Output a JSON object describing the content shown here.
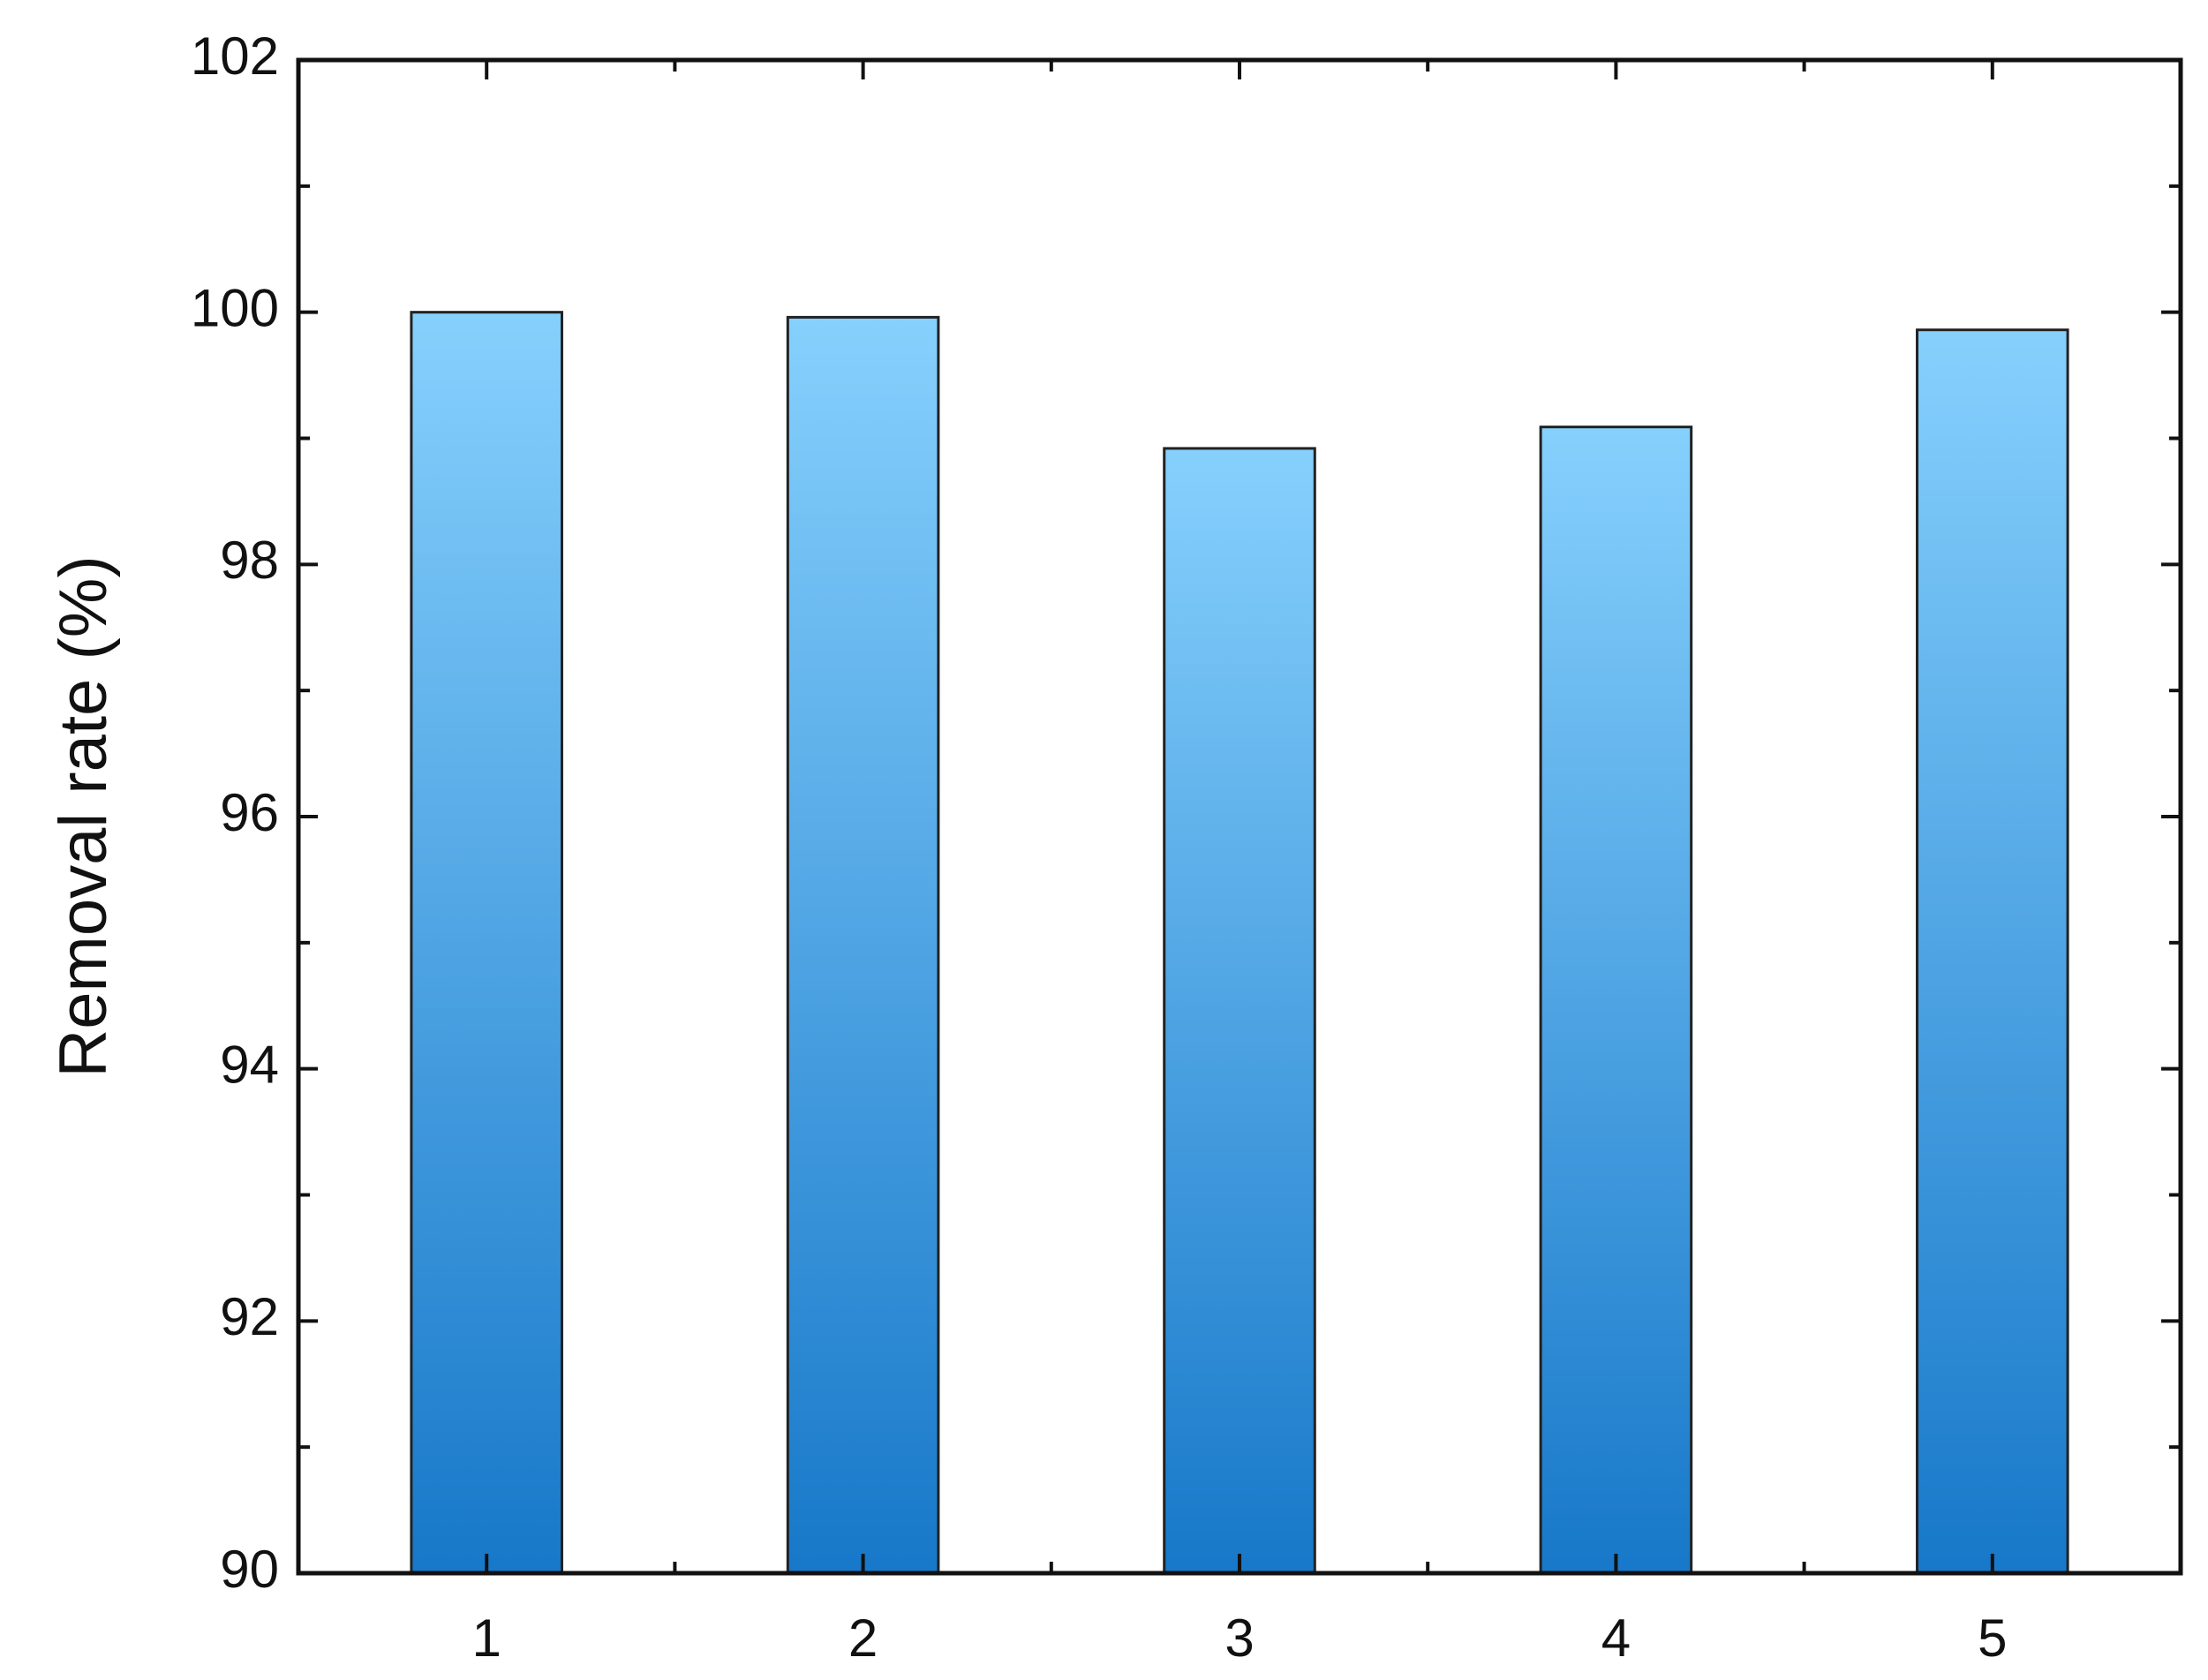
{
  "chart_data": {
    "type": "bar",
    "y_label": "Removal rate  (%)",
    "categories": [
      "1",
      "2",
      "3",
      "4",
      "5"
    ],
    "values": [
      100.0,
      99.96,
      98.92,
      99.09,
      99.86
    ],
    "color_top": "#86d0fd",
    "color_bottom": "#1778c9",
    "ylim": [
      90,
      102
    ],
    "yticks": [
      90,
      92,
      94,
      96,
      98,
      100,
      102
    ],
    "grid": false
  }
}
